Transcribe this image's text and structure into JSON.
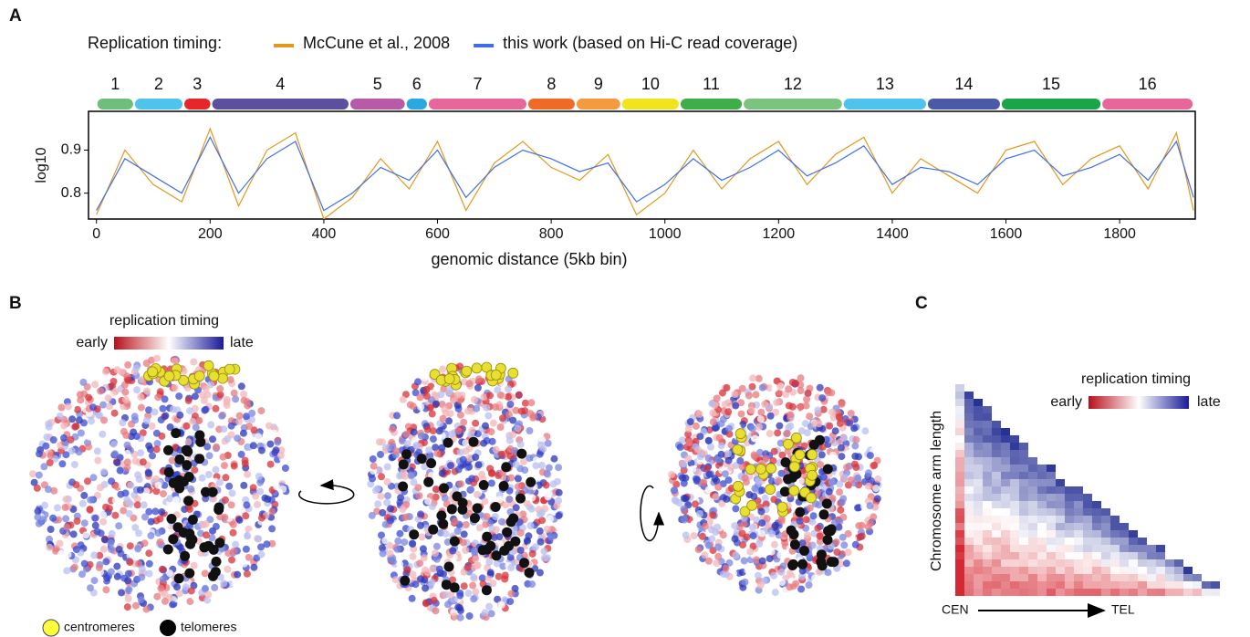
{
  "panel_labels": [
    "A",
    "B",
    "C"
  ],
  "chart_data": {
    "type": "line",
    "legend_title": "Replication timing:",
    "xlabel": "genomic distance (5kb bin)",
    "ylabel": "log10",
    "x": [
      0,
      50,
      100,
      150,
      200,
      250,
      300,
      350,
      400,
      450,
      500,
      550,
      600,
      650,
      700,
      750,
      800,
      850,
      900,
      950,
      1000,
      1050,
      1100,
      1150,
      1200,
      1250,
      1300,
      1350,
      1400,
      1450,
      1500,
      1550,
      1600,
      1650,
      1700,
      1750,
      1800,
      1850,
      1900,
      1930
    ],
    "series": [
      {
        "name": "McCune et al., 2008",
        "color": "#e09a1a",
        "values": [
          0.75,
          0.9,
          0.82,
          0.78,
          0.95,
          0.77,
          0.9,
          0.94,
          0.74,
          0.79,
          0.88,
          0.81,
          0.92,
          0.76,
          0.87,
          0.92,
          0.86,
          0.83,
          0.89,
          0.75,
          0.8,
          0.9,
          0.81,
          0.88,
          0.92,
          0.82,
          0.89,
          0.93,
          0.8,
          0.88,
          0.84,
          0.8,
          0.9,
          0.92,
          0.82,
          0.88,
          0.91,
          0.81,
          0.94,
          0.76
        ]
      },
      {
        "name": "this work (based on Hi-C read coverage)",
        "color": "#3f6fe8",
        "values": [
          0.76,
          0.88,
          0.84,
          0.8,
          0.93,
          0.8,
          0.88,
          0.92,
          0.76,
          0.8,
          0.86,
          0.83,
          0.9,
          0.79,
          0.86,
          0.9,
          0.88,
          0.85,
          0.87,
          0.78,
          0.82,
          0.88,
          0.83,
          0.86,
          0.9,
          0.84,
          0.87,
          0.91,
          0.82,
          0.86,
          0.85,
          0.82,
          0.88,
          0.9,
          0.84,
          0.86,
          0.89,
          0.83,
          0.92,
          0.79
        ]
      }
    ],
    "xlim": [
      -14,
      1933
    ],
    "xticks": [
      0,
      200,
      400,
      600,
      800,
      1000,
      1200,
      1400,
      1600,
      1800
    ],
    "ylim": [
      0.74,
      0.99
    ],
    "yticks": [
      0.8,
      0.9
    ],
    "chromosomes": {
      "labels": [
        "1",
        "2",
        "3",
        "4",
        "5",
        "6",
        "7",
        "8",
        "9",
        "10",
        "11",
        "12",
        "13",
        "14",
        "15",
        "16"
      ],
      "start": [
        0,
        66,
        153,
        202,
        445,
        544,
        583,
        758,
        843,
        923,
        1026,
        1137,
        1313,
        1461,
        1591,
        1768
      ],
      "end": [
        66,
        153,
        202,
        445,
        544,
        583,
        758,
        843,
        923,
        1026,
        1137,
        1313,
        1461,
        1591,
        1768,
        1930
      ],
      "colors": [
        "#6dbf7b",
        "#4fc3ec",
        "#e8262a",
        "#5c4f9e",
        "#b85aa8",
        "#2aa8e0",
        "#e8679a",
        "#ef6a25",
        "#f59a3e",
        "#f0e41c",
        "#3fae49",
        "#7bc47f",
        "#4fc3ec",
        "#4a5aa8",
        "#1aa54a",
        "#e8679a"
      ]
    }
  },
  "panel_b": {
    "colorbar_title": "replication timing",
    "colorbar_low": "early",
    "colorbar_high": "late",
    "legend": [
      "centromeres",
      "telomeres"
    ]
  },
  "panel_c": {
    "ylabel": "Chromosome arm length",
    "colorbar_title": "replication timing",
    "colorbar_low": "early",
    "colorbar_high": "late",
    "x_start": "CEN",
    "x_end": "TEL"
  }
}
